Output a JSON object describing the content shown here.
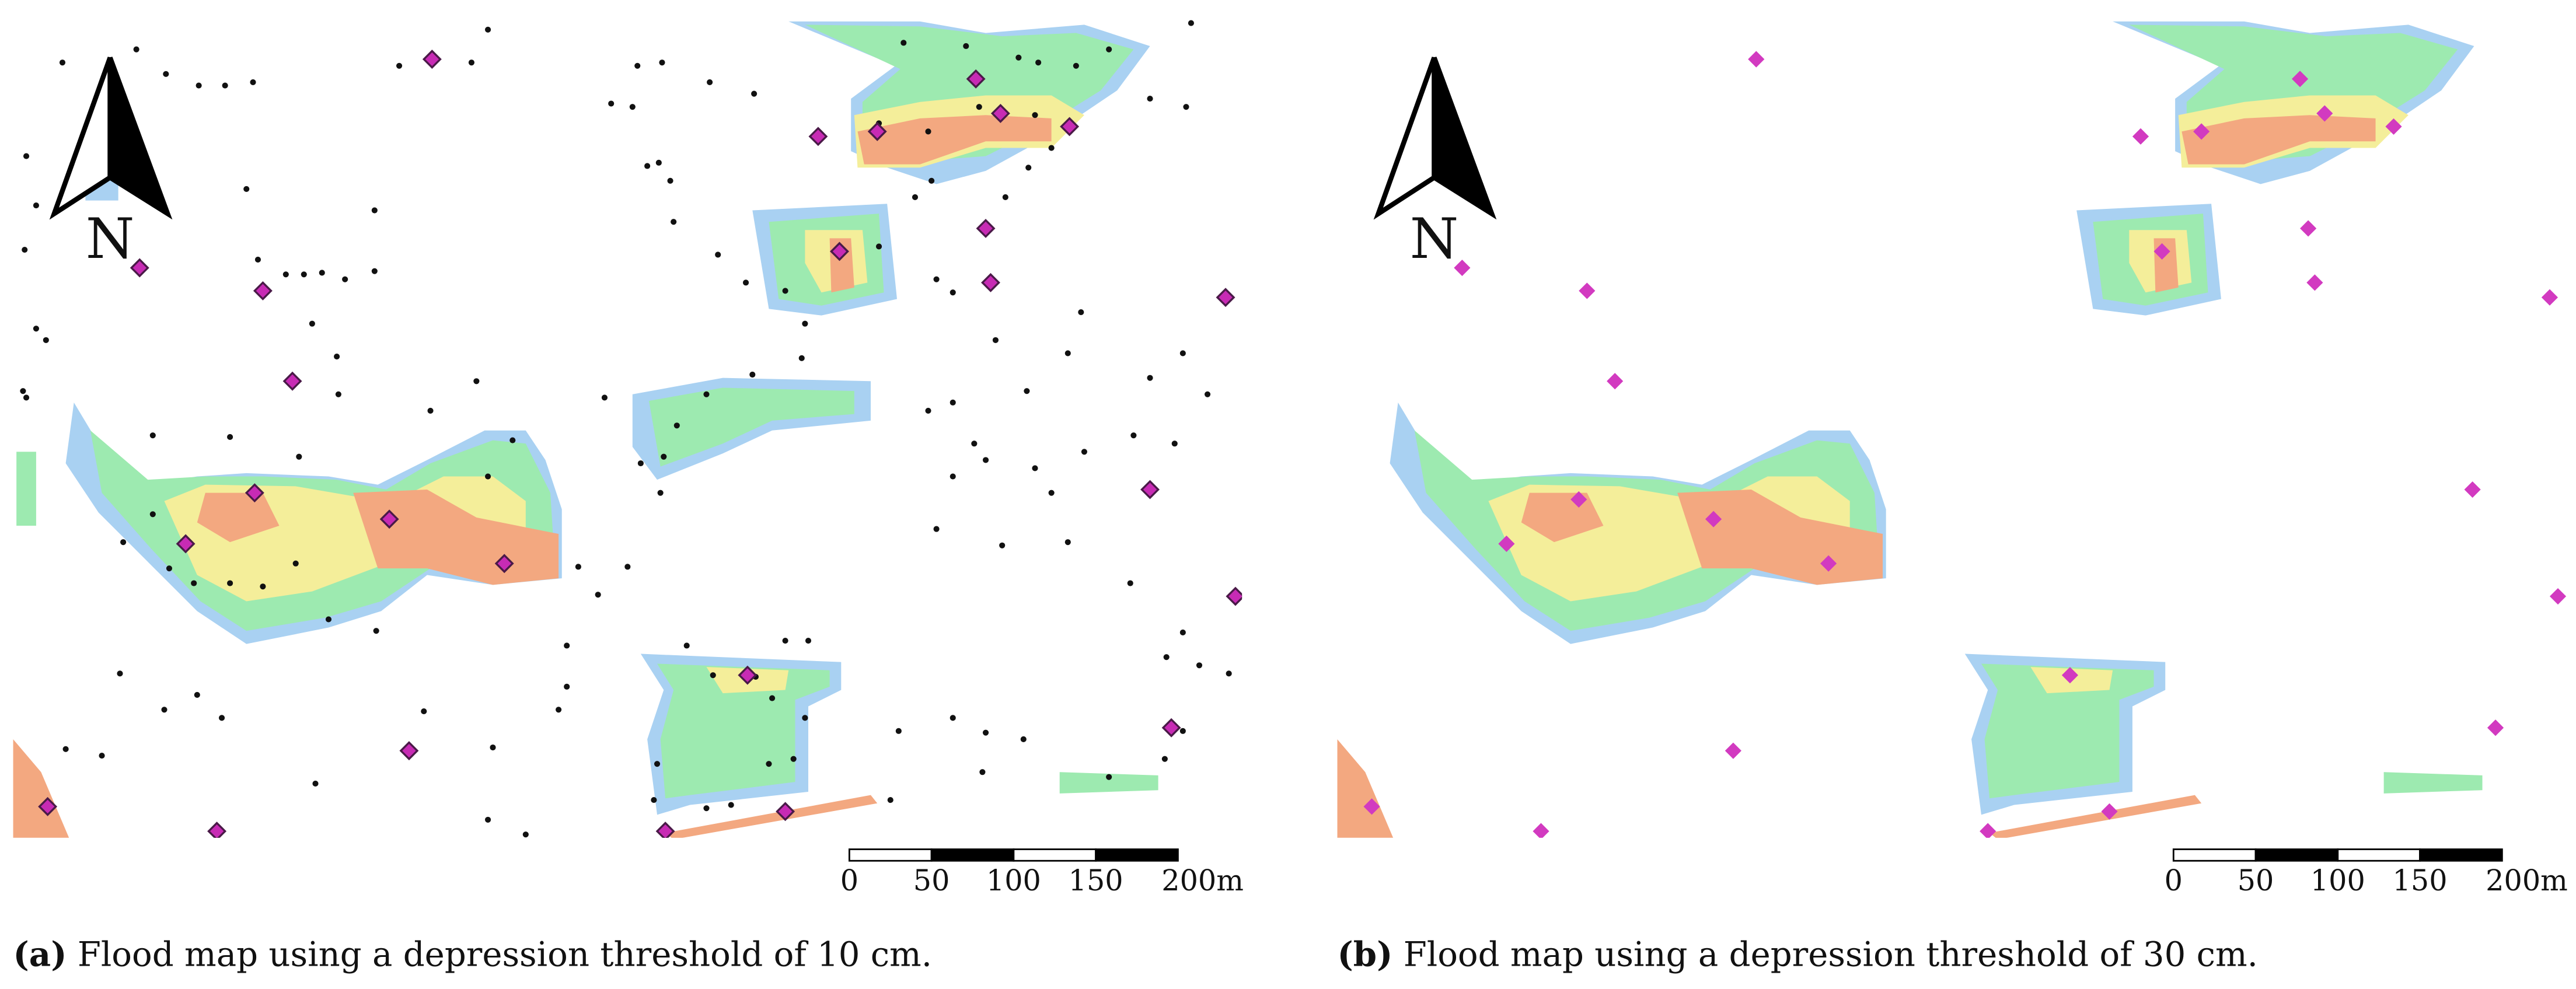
{
  "north_label": "N",
  "scale_labels": [
    "0",
    "50",
    "100",
    "150",
    "200m"
  ],
  "panels": [
    {
      "label": "(a)",
      "caption": "Flood map using a depression threshold of 10 cm."
    },
    {
      "label": "(b)",
      "caption": "Flood map using a depression threshold of 30 cm."
    }
  ]
}
